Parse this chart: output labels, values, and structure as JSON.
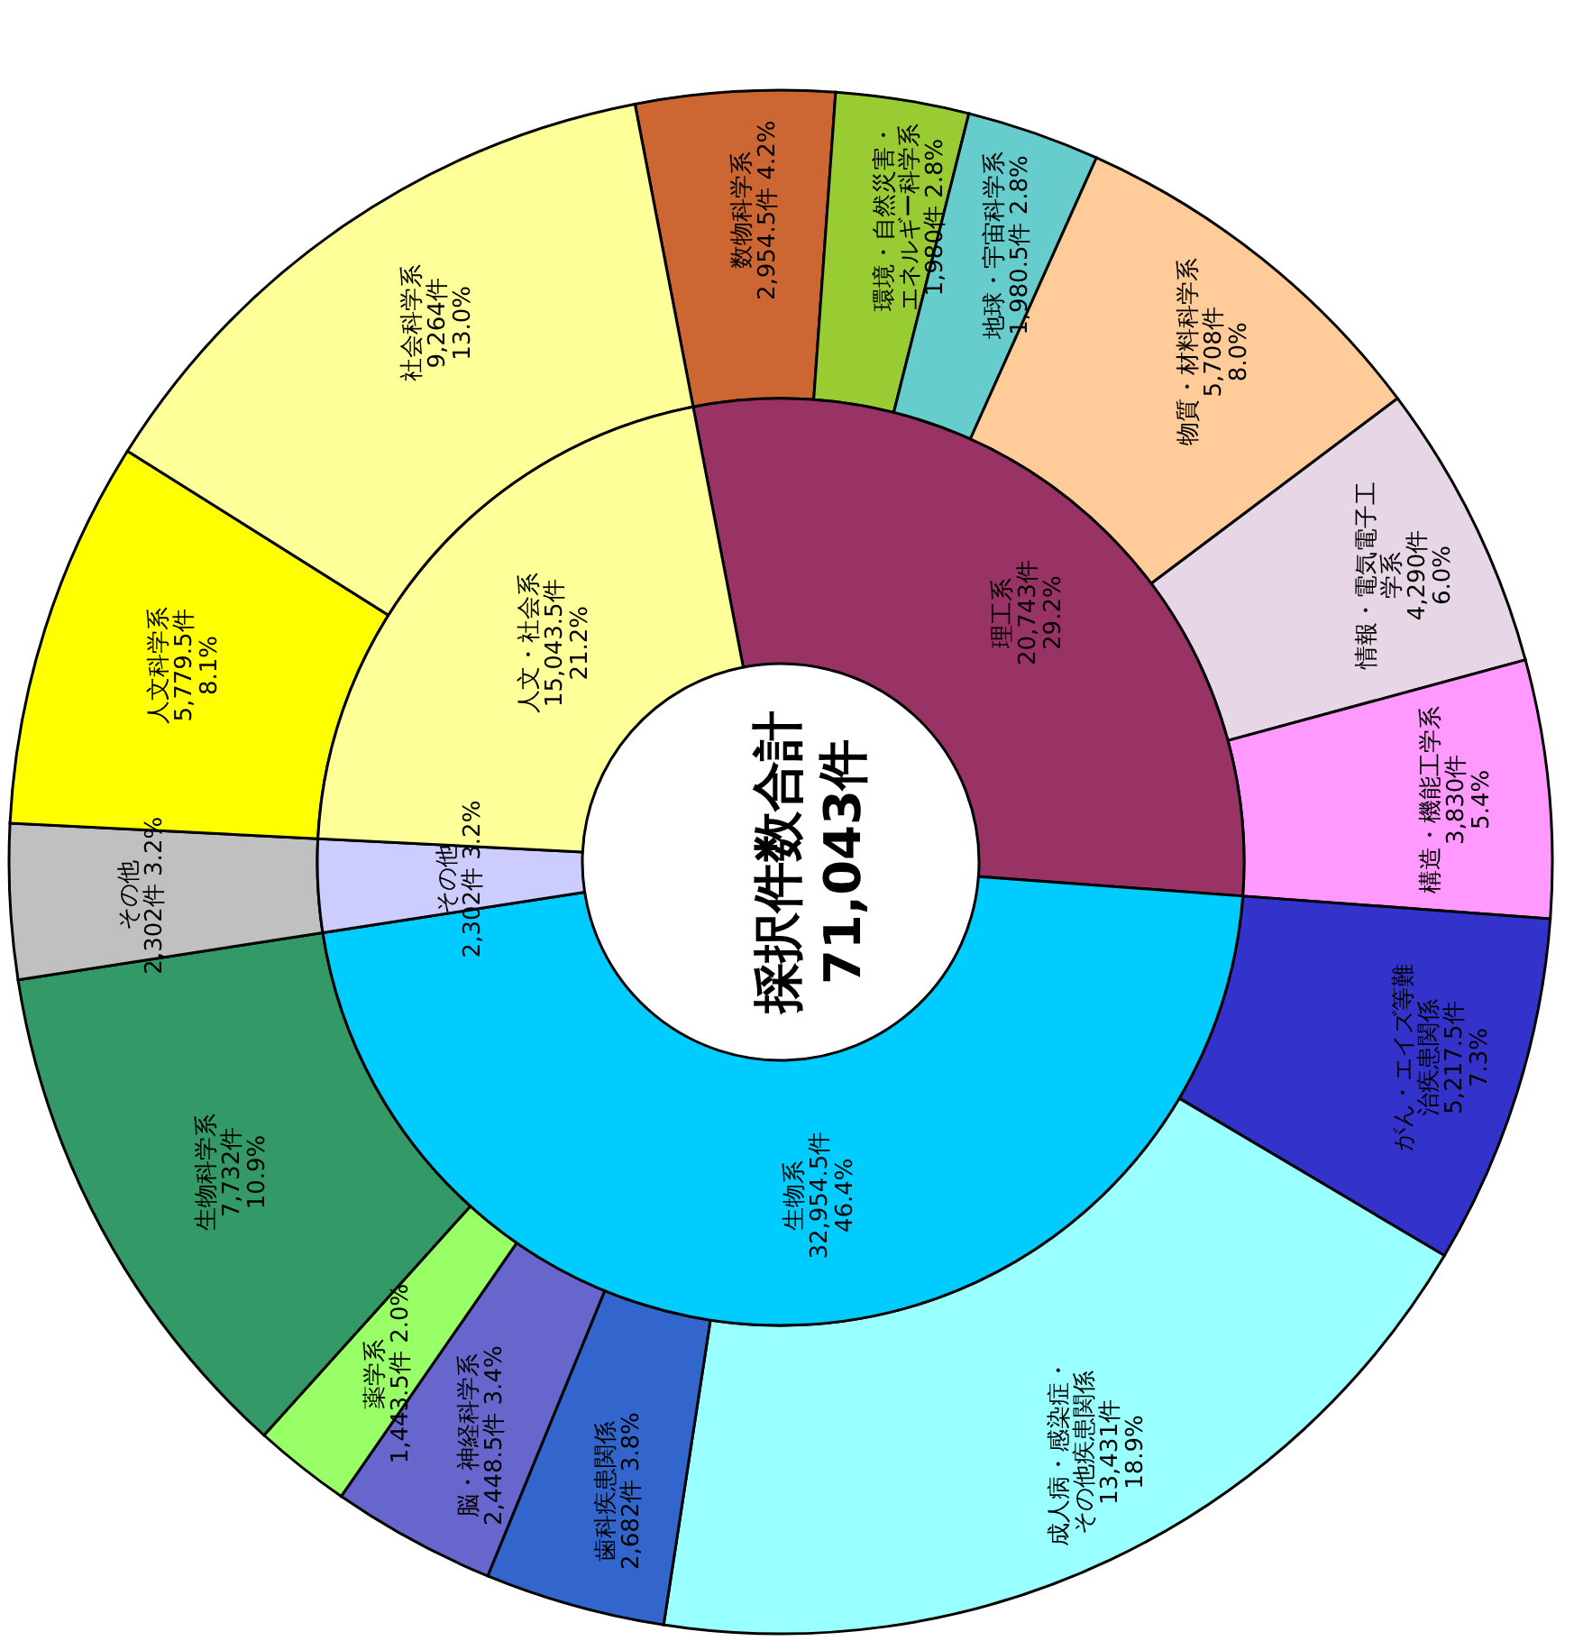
{
  "chart_data": [
    {
      "type": "donut",
      "categories": [
        "理工系",
        "生物系",
        "その他",
        "人文・社会系"
      ],
      "values": [
        20743,
        32954.5,
        2302,
        15043.5
      ],
      "value_labels": [
        "20,743件 29.2%",
        "32,954.5件 46.4%",
        "2,302件 3.2%",
        "15,043.5件 21.2%"
      ],
      "colors": [
        "#993366",
        "#00ccff",
        "#ccccff",
        "#ffff99"
      ],
      "annotations": [
        "採択件数合計",
        "71,043件"
      ]
    },
    {
      "type": "donut",
      "categories": [
        "数物科学系",
        "環境・自然災害・エネルギー科学系",
        "地球・宇宙科学系",
        "物質・材料科学系",
        "情報・電気電子工学系",
        "構造・機能工学系",
        "がん・エイズ等難治疾患関係",
        "成人病・感染症・その他疾患関係",
        "歯科疾患関係",
        "脳・神経科学系",
        "薬学系",
        "生物科学系",
        "その他",
        "人文科学系",
        "社会科学系"
      ],
      "values": [
        2954.5,
        1980,
        1980.5,
        5708,
        4290,
        3830,
        5217.5,
        13431,
        2682,
        2448.5,
        1443.5,
        7732,
        2302,
        5779.5,
        9264
      ],
      "value_labels": [
        "2,954.5件 4.2%",
        "1,980件 2.8%",
        "1,980.5件 2.8%",
        "5,708件 8.0%",
        "4,290件 6.0%",
        "3,830件 5.4%",
        "5,217.5件 7.3%",
        "13,431件 18.9%",
        "2,682件 3.8%",
        "2,448.5件 3.4%",
        "1,443.5件 2.0%",
        "7,732件 10.9%",
        "2,302件 3.2%",
        "5,779.5件 8.1%",
        "9,264件 13.0%"
      ],
      "colors": [
        "#cc6633",
        "#99cc33",
        "#66cccc",
        "#ffcc99",
        "#e6d6e6",
        "#ff99ff",
        "#3333cc",
        "#99ffff",
        "#3366cc",
        "#6666cc",
        "#99ff66",
        "#339966",
        "#c0c0c0",
        "#ffff00",
        "#ffff99"
      ]
    }
  ]
}
